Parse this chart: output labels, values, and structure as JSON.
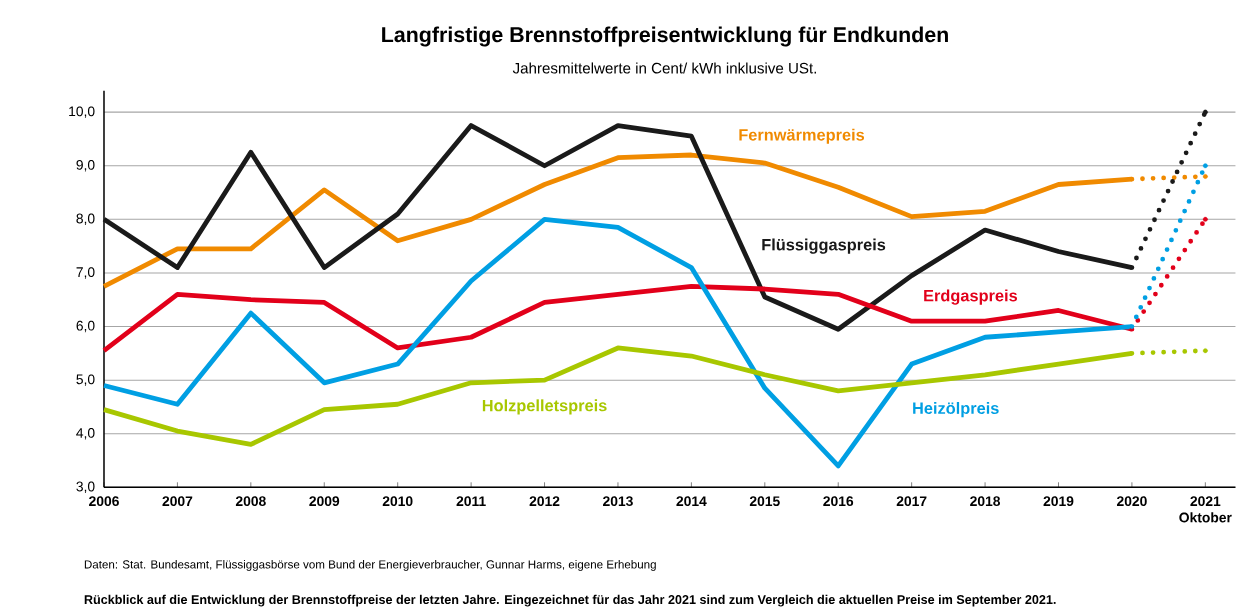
{
  "chart_data": {
    "type": "line",
    "title": "Langfristige Brennstoffpreisentwicklung für Endkunden",
    "subtitle": "Jahresmittelwerte in Cent/ kWh inklusive USt.",
    "categories": [
      "2006",
      "2007",
      "2008",
      "2009",
      "2010",
      "2011",
      "2012",
      "2013",
      "2014",
      "2015",
      "2016",
      "2017",
      "2018",
      "2019",
      "2020",
      "2021"
    ],
    "ylim": [
      3,
      10.4
    ],
    "yticks": [
      {
        "value": 3,
        "label": "3,0"
      },
      {
        "value": 4,
        "label": "4,0"
      },
      {
        "value": 5,
        "label": "5,0"
      },
      {
        "value": 6,
        "label": "6,0"
      },
      {
        "value": 7,
        "label": "7,0"
      },
      {
        "value": 8,
        "label": "8,0"
      },
      {
        "value": 9,
        "label": "9,0"
      },
      {
        "value": 10,
        "label": "10,0"
      }
    ],
    "grid": "y",
    "series": [
      {
        "name": "Fernwärmepreis",
        "color": "#f08a00",
        "line_style": "solid",
        "values": [
          6.75,
          7.45,
          7.45,
          8.55,
          7.6,
          8.0,
          8.65,
          9.15,
          9.2,
          9.05,
          8.6,
          8.05,
          8.15,
          8.65,
          8.75,
          null
        ]
      },
      {
        "name": "Flüssiggaspreis",
        "color": "#1a1a1a",
        "line_style": "solid",
        "values": [
          8.0,
          7.1,
          9.25,
          7.1,
          8.1,
          9.75,
          9.0,
          9.75,
          9.55,
          6.55,
          5.95,
          6.95,
          7.8,
          7.4,
          7.1,
          null
        ]
      },
      {
        "name": "Erdgaspreis",
        "color": "#e2001a",
        "line_style": "solid",
        "values": [
          5.55,
          6.6,
          6.5,
          6.45,
          5.6,
          5.8,
          6.45,
          6.6,
          6.75,
          6.7,
          6.6,
          6.1,
          6.1,
          6.3,
          5.95,
          null
        ]
      },
      {
        "name": "Heizölpreis",
        "color": "#009fe3",
        "line_style": "solid",
        "values": [
          4.9,
          4.55,
          6.25,
          4.95,
          5.3,
          6.85,
          8.0,
          7.85,
          7.1,
          4.85,
          3.4,
          5.3,
          5.8,
          5.9,
          6.0,
          null
        ]
      },
      {
        "name": "Holzpelletspreis",
        "color": "#a8c700",
        "line_style": "solid",
        "values": [
          4.45,
          4.05,
          3.8,
          4.45,
          4.55,
          4.95,
          5.0,
          5.6,
          5.45,
          5.1,
          4.8,
          4.95,
          5.1,
          5.3,
          5.5,
          null
        ]
      },
      {
        "color": "#f08a00",
        "line_style": "dotted",
        "values": [
          null,
          null,
          null,
          null,
          null,
          null,
          null,
          null,
          null,
          null,
          null,
          null,
          null,
          null,
          8.75,
          8.8
        ]
      },
      {
        "color": "#1a1a1a",
        "line_style": "dotted",
        "values": [
          null,
          null,
          null,
          null,
          null,
          null,
          null,
          null,
          null,
          null,
          null,
          null,
          null,
          null,
          7.1,
          10.0
        ]
      },
      {
        "color": "#e2001a",
        "line_style": "dotted",
        "values": [
          null,
          null,
          null,
          null,
          null,
          null,
          null,
          null,
          null,
          null,
          null,
          null,
          null,
          null,
          5.95,
          8.0
        ]
      },
      {
        "color": "#009fe3",
        "line_style": "dotted",
        "values": [
          null,
          null,
          null,
          null,
          null,
          null,
          null,
          null,
          null,
          null,
          null,
          null,
          null,
          null,
          6.0,
          9.0
        ]
      },
      {
        "color": "#a8c700",
        "line_style": "dotted",
        "values": [
          null,
          null,
          null,
          null,
          null,
          null,
          null,
          null,
          null,
          null,
          null,
          null,
          null,
          null,
          5.5,
          5.55
        ]
      }
    ],
    "annotations": [
      "Oktober",
      "Daten: Stat. Bundesamt, Flüssiggasbörse vom Bund der Energieverbraucher, Gunnar Harms, eigene Erhebung",
      "Rückblick auf die Entwicklung der Brennstoffpreise der letzten Jahre. Eingezeichnet für das Jahr 2021 sind zum Vergleich die aktuellen Preise im September 2021."
    ]
  }
}
